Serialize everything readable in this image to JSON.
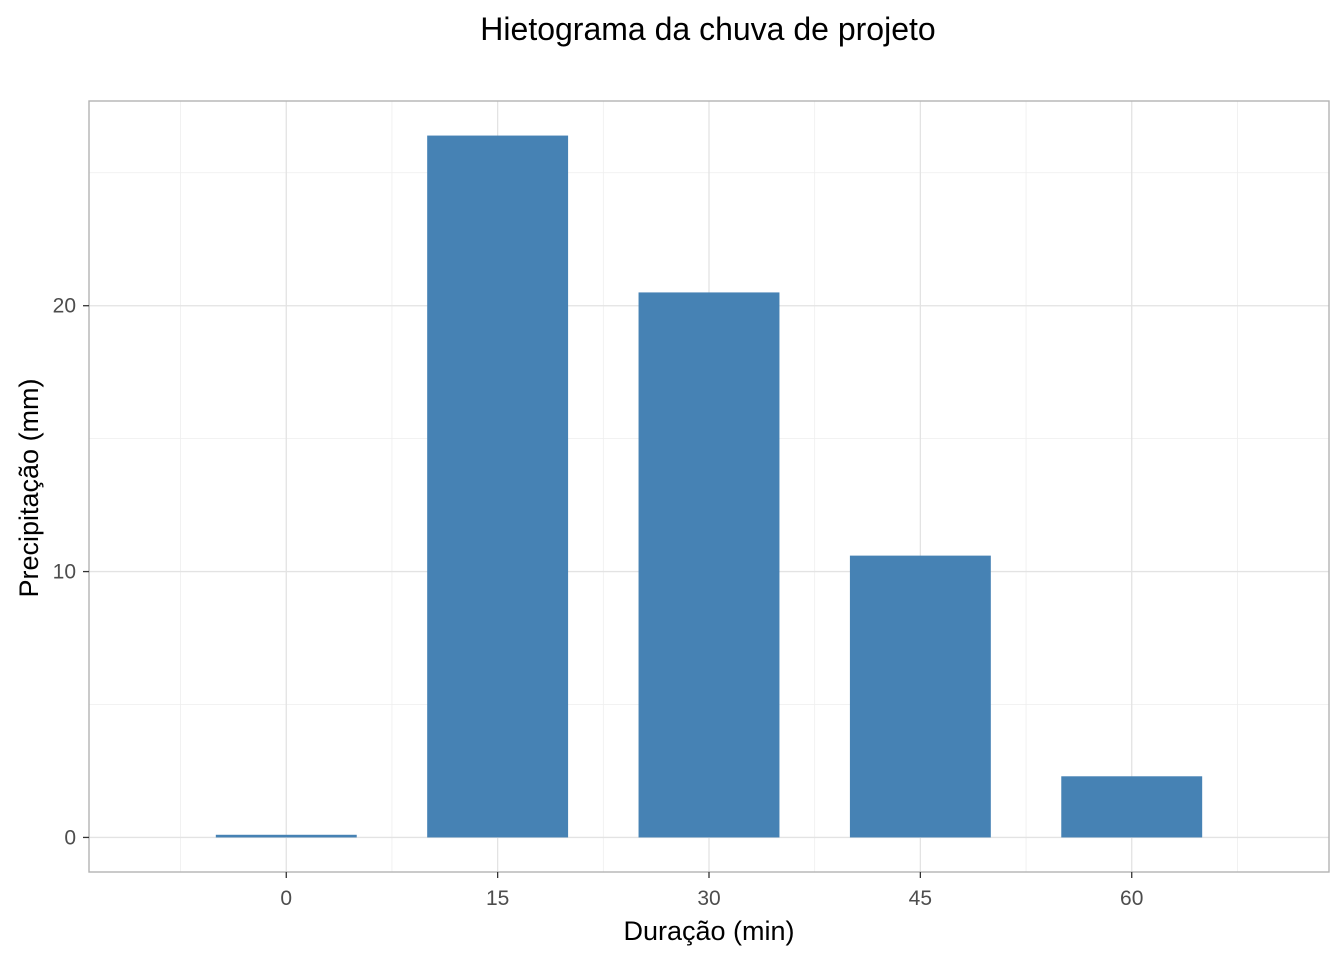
{
  "chart_data": {
    "type": "bar",
    "title": "Hietograma da chuva de projeto",
    "xlabel": "Duração (min)",
    "ylabel": "Precipitação (mm)",
    "x": [
      0,
      15,
      30,
      45,
      60
    ],
    "x_tick_labels": [
      "0",
      "15",
      "30",
      "45",
      "60"
    ],
    "values": [
      0.1,
      26.4,
      20.5,
      10.6,
      2.3
    ],
    "bar_width": 10,
    "xlim": [
      -14,
      74
    ],
    "ylim": [
      -1.3,
      27.7
    ],
    "y_ticks": [
      0,
      10,
      20
    ],
    "y_tick_labels": [
      "0",
      "10",
      "20"
    ],
    "y_minor_ticks": [
      5,
      15,
      25
    ],
    "x_minor_ticks": [
      -7.5,
      7.5,
      22.5,
      37.5,
      52.5,
      67.5
    ],
    "grid": true,
    "bar_color": "#4682b4"
  }
}
